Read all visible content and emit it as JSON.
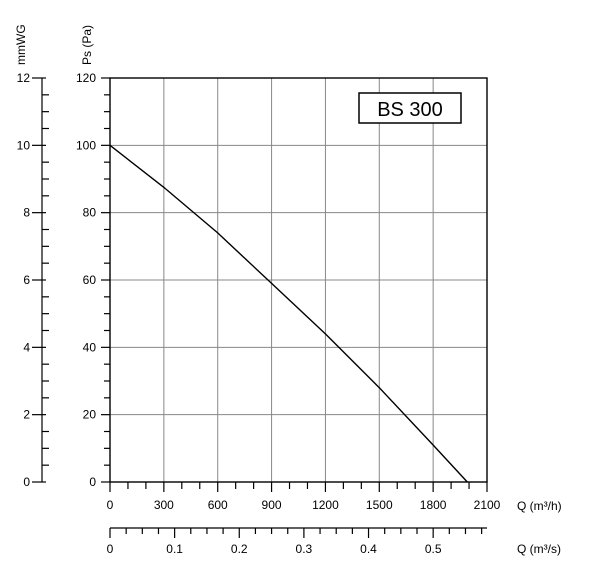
{
  "chart_data": {
    "type": "line",
    "title": "BS 300",
    "xlabel": "Q (m³/h)",
    "x2label": "Q (m³/s)",
    "ylabel": "Ps (Pa)",
    "y2label": "mmWG",
    "xlim": [
      0,
      2100
    ],
    "ylim": [
      0,
      120
    ],
    "x2lim": [
      0,
      0.5833
    ],
    "y2lim": [
      0,
      12
    ],
    "grid": true,
    "xticks": [
      0,
      300,
      600,
      900,
      1200,
      1500,
      1800,
      2100
    ],
    "x2ticks": [
      0,
      0.1,
      0.2,
      0.3,
      0.4,
      0.5
    ],
    "x2ticklabels": [
      "0",
      "0.1",
      "0.2",
      "0.3",
      "0.4",
      "0.5"
    ],
    "yticks": [
      0,
      20,
      40,
      60,
      80,
      100,
      120
    ],
    "y2ticks": [
      0,
      2,
      4,
      6,
      8,
      10,
      12
    ],
    "series": [
      {
        "x": [
          0,
          300,
          600,
          900,
          1200,
          1500,
          1800,
          1990
        ],
        "y": [
          100,
          87.5,
          74,
          59,
          44,
          28,
          11,
          0
        ]
      }
    ]
  }
}
